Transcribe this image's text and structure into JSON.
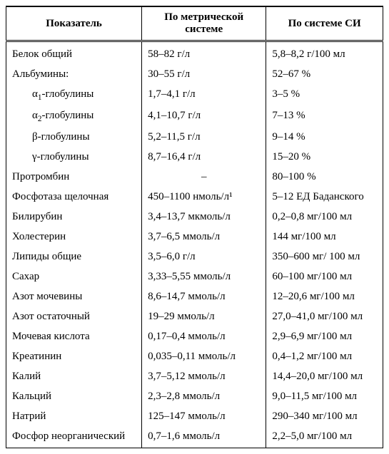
{
  "table": {
    "headers": {
      "col1": "Показатель",
      "col2": "По метрической системе",
      "col3": "По системе СИ"
    },
    "rows": [
      {
        "indicator": "Белок общий",
        "metric": "58–82 г/л",
        "si": "5,8–8,2 г/100 мл",
        "indent": false
      },
      {
        "indicator": "Альбумины:",
        "metric": "30–55 г/л",
        "si": "52–67 %",
        "indent": false
      },
      {
        "indicator": "α₁-глобулины",
        "metric": "1,7–4,1 г/л",
        "si": "3–5 %",
        "indent": true,
        "sub": "1",
        "prefix": "α",
        "suffix": "-глобулины"
      },
      {
        "indicator": "α₂-глобулины",
        "metric": "4,1–10,7 г/л",
        "si": "7–13 %",
        "indent": true,
        "sub": "2",
        "prefix": "α",
        "suffix": "-глобулины"
      },
      {
        "indicator": "β-глобулины",
        "metric": "5,2–11,5 г/л",
        "si": "9–14 %",
        "indent": true
      },
      {
        "indicator": "γ-глобулины",
        "metric": "8,7–16,4 г/л",
        "si": "15–20 %",
        "indent": true
      },
      {
        "indicator": "Протромбин",
        "metric": "–",
        "si": "80–100 %",
        "indent": false,
        "center_metric": true
      },
      {
        "indicator": "Фосфотаза щелочная",
        "metric": "450–1100 нмоль/л¹",
        "si": "5–12 ЕД Баданского",
        "indent": false
      },
      {
        "indicator": "Билирубин",
        "metric": "3,4–13,7 мкмоль/л",
        "si": "0,2–0,8 мг/100 мл",
        "indent": false
      },
      {
        "indicator": "Холестерин",
        "metric": "3,7–6,5 ммоль/л",
        "si": "144 мг/100 мл",
        "indent": false
      },
      {
        "indicator": "Липиды общие",
        "metric": "3,5–6,0 г/л",
        "si": "350–600 мг/ 100 мл",
        "indent": false
      },
      {
        "indicator": "Сахар",
        "metric": "3,33–5,55 ммоль/л",
        "si": "60–100 мг/100 мл",
        "indent": false
      },
      {
        "indicator": "Азот мочевины",
        "metric": "8,6–14,7 ммоль/л",
        "si": "12–20,6 мг/100 мл",
        "indent": false
      },
      {
        "indicator": "Азот остаточный",
        "metric": "19–29 ммоль/л",
        "si": "27,0–41,0 мг/100 мл",
        "indent": false
      },
      {
        "indicator": "Мочевая кислота",
        "metric": "0,17–0,4 ммоль/л",
        "si": "2,9–6,9 мг/100 мл",
        "indent": false
      },
      {
        "indicator": "Креатинин",
        "metric": "0,035–0,11 ммоль/л",
        "si": "0,4–1,2 мг/100 мл",
        "indent": false
      },
      {
        "indicator": "Калий",
        "metric": "3,7–5,12 ммоль/л",
        "si": "14,4–20,0 мг/100 мл",
        "indent": false
      },
      {
        "indicator": "Кальций",
        "metric": "2,3–2,8 ммоль/л",
        "si": "9,0–11,5 мг/100 мл",
        "indent": false
      },
      {
        "indicator": "Натрий",
        "metric": "125–147 ммоль/л",
        "si": "290–340 мг/100 мл",
        "indent": false
      },
      {
        "indicator": "Фосфор неорганический",
        "metric": "0,7–1,6 ммоль/л",
        "si": "2,2–5,0 мг/100 мл",
        "indent": false
      }
    ],
    "styling": {
      "font_family": "Times New Roman",
      "font_size_pt": 11,
      "text_color": "#000000",
      "background_color": "#ffffff",
      "border_color": "#000000",
      "header_double_border": true,
      "col_widths_pct": [
        36,
        33,
        31
      ]
    }
  }
}
